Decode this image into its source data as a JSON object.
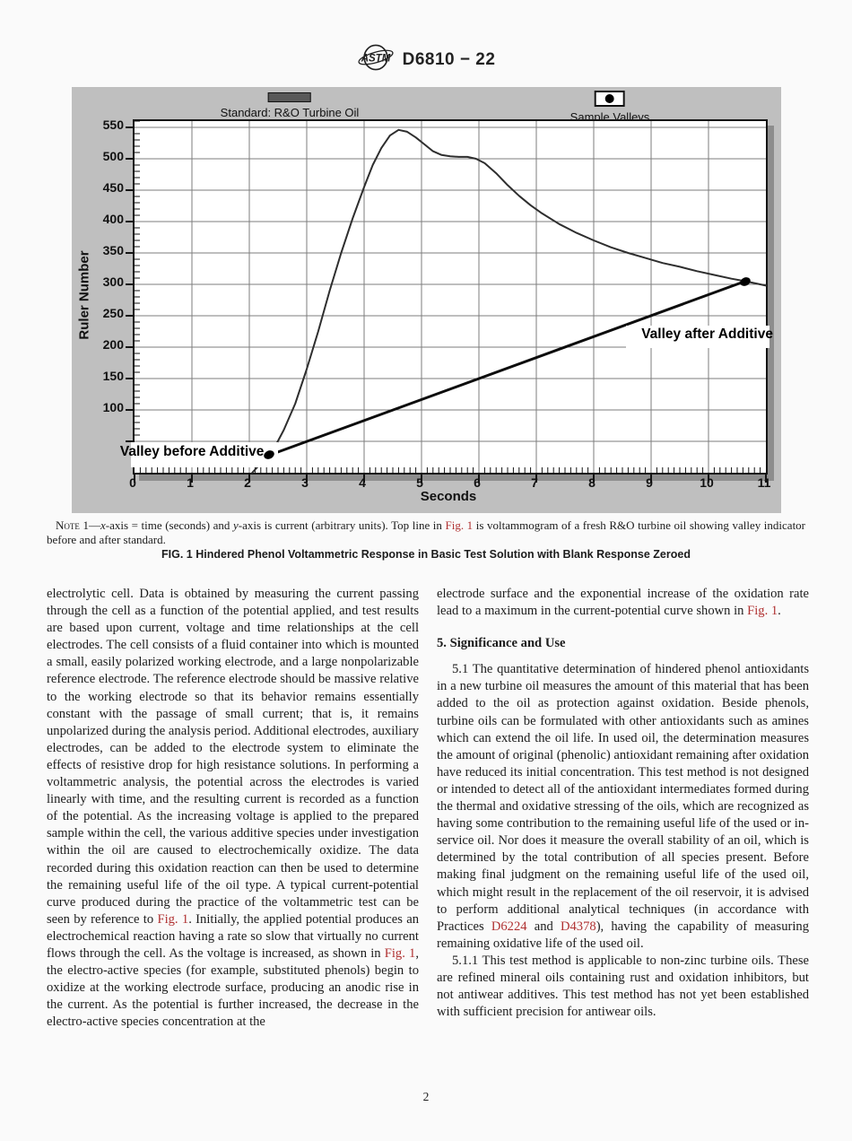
{
  "accent_red": "#b03131",
  "header": {
    "doc_code": "D6810 − 22"
  },
  "figure": {
    "legend": [
      {
        "label": "Standard: R&O Turbine Oil",
        "swatch": "solid-bar-swatch"
      },
      {
        "label": "Sample Valleys",
        "swatch": "dot-marker-swatch"
      }
    ],
    "caption": "FIG. 1 Hindered Phenol Voltammetric Response in Basic Test Solution with Blank Response Zeroed",
    "note_segments": [
      {
        "text": "Note",
        "style": "sc"
      },
      {
        "text": " 1—"
      },
      {
        "text": "x",
        "style": "i"
      },
      {
        "text": "-axis = time (seconds) and "
      },
      {
        "text": "y",
        "style": "i"
      },
      {
        "text": "-axis is current (arbitrary units). Top line in "
      },
      {
        "text": "Fig. 1",
        "style": "red"
      },
      {
        "text": " is voltammogram of a fresh R&O turbine oil showing valley indicator before and after standard."
      }
    ]
  },
  "chart_data": {
    "type": "line",
    "title": "",
    "xlabel": "Seconds",
    "ylabel": "Ruler Number",
    "xlim": [
      0,
      11
    ],
    "ylim": [
      0,
      560
    ],
    "grid": true,
    "legend_position": "top",
    "x_ticks": [
      0,
      1,
      2,
      3,
      4,
      5,
      6,
      7,
      8,
      9,
      10,
      11
    ],
    "y_ticks": [
      100,
      150,
      200,
      250,
      300,
      350,
      400,
      450,
      500,
      550
    ],
    "y_gridlines": [
      50,
      100,
      150,
      200,
      250,
      300,
      350,
      400,
      450,
      500,
      550
    ],
    "x_minor_step": 0.1,
    "y_minor_step": 10,
    "series": [
      {
        "name": "Standard: R&O Turbine Oil",
        "points": [
          [
            2.05,
            0
          ],
          [
            2.15,
            10
          ],
          [
            2.25,
            20
          ],
          [
            2.35,
            28
          ],
          [
            2.45,
            42
          ],
          [
            2.6,
            68
          ],
          [
            2.8,
            110
          ],
          [
            3.0,
            165
          ],
          [
            3.2,
            225
          ],
          [
            3.4,
            290
          ],
          [
            3.6,
            350
          ],
          [
            3.8,
            405
          ],
          [
            4.0,
            455
          ],
          [
            4.15,
            490
          ],
          [
            4.3,
            517
          ],
          [
            4.45,
            537
          ],
          [
            4.6,
            546
          ],
          [
            4.75,
            543
          ],
          [
            4.9,
            534
          ],
          [
            5.05,
            523
          ],
          [
            5.2,
            512
          ],
          [
            5.35,
            506
          ],
          [
            5.5,
            504
          ],
          [
            5.65,
            503
          ],
          [
            5.8,
            503
          ],
          [
            5.95,
            500
          ],
          [
            6.1,
            493
          ],
          [
            6.3,
            477
          ],
          [
            6.5,
            458
          ],
          [
            6.7,
            441
          ],
          [
            6.9,
            426
          ],
          [
            7.1,
            413
          ],
          [
            7.4,
            396
          ],
          [
            7.7,
            382
          ],
          [
            8.0,
            370
          ],
          [
            8.3,
            359
          ],
          [
            8.6,
            350
          ],
          [
            8.9,
            342
          ],
          [
            9.2,
            334
          ],
          [
            9.5,
            328
          ],
          [
            9.8,
            321
          ],
          [
            10.1,
            315
          ],
          [
            10.4,
            309
          ],
          [
            10.64,
            305
          ],
          [
            10.8,
            302
          ],
          [
            11.0,
            298
          ]
        ]
      },
      {
        "name": "Valley indicator line",
        "points": [
          [
            2.35,
            28
          ],
          [
            10.64,
            305
          ]
        ]
      }
    ],
    "markers": {
      "name": "Sample Valleys",
      "points": [
        [
          2.35,
          28
        ],
        [
          10.64,
          305
        ]
      ]
    },
    "annotations": [
      {
        "label": "Valley before Additive",
        "point": [
          2.35,
          28
        ],
        "side": "left"
      },
      {
        "label": "Valley after Additive",
        "point": [
          10.64,
          305
        ],
        "side": "right"
      }
    ],
    "colors": {
      "figure_bg": "#bfbfbf",
      "plot_bg": "#ffffff",
      "grid": "#7d7d7d",
      "axis": "#141414",
      "curve": "#2e2e2e",
      "valley_line": "#0d0d0d",
      "shadow": "#8d8d8d"
    }
  },
  "body": {
    "left_column": {
      "paragraphs": [
        {
          "indent": false,
          "segments": [
            {
              "text": "electrolytic cell. Data is obtained by measuring the current passing through the cell as a function of the potential applied, and test results are based upon current, voltage and time relationships at the cell electrodes. The cell consists of a fluid container into which is mounted a small, easily polarized working electrode, and a large nonpolarizable reference electrode. The reference electrode should be massive relative to the working electrode so that its behavior remains essentially constant with the passage of small current; that is, it remains unpolarized during the analysis period. Additional electrodes, auxiliary electrodes, can be added to the electrode system to eliminate the effects of resistive drop for high resistance solutions. In performing a voltammetric analysis, the potential across the electrodes is varied linearly with time, and the resulting current is recorded as a function of the potential. As the increasing voltage is applied to the prepared sample within the cell, the various additive species under investigation within the oil are caused to electrochemically oxidize. The data recorded during this oxidation reaction can then be used to determine the remaining useful life of the oil type. A typical current-potential curve produced during the practice of the voltammetric test can be seen by reference to "
            },
            {
              "text": "Fig. 1",
              "style": "red"
            },
            {
              "text": ". Initially, the applied potential produces an electrochemical reaction having a rate so slow that virtually no current flows through the cell. As the voltage is increased, as shown in "
            },
            {
              "text": "Fig. 1",
              "style": "red"
            },
            {
              "text": ", the electro-active species (for example, substituted phenols) begin to oxidize at the working electrode surface, producing an anodic rise in the current. As the potential is further increased, the decrease in the electro-active species concentration at the"
            }
          ]
        }
      ]
    },
    "right_column": {
      "paragraph_1": {
        "indent": false,
        "segments": [
          {
            "text": "electrode surface and the exponential increase of the oxidation rate lead to a maximum in the current-potential curve shown in "
          },
          {
            "text": "Fig. 1",
            "style": "red"
          },
          {
            "text": "."
          }
        ]
      },
      "heading": "5. Significance and Use",
      "paragraph_5_1": {
        "indent": true,
        "segments": [
          {
            "text": "5.1 The quantitative determination of hindered phenol antioxidants in a new turbine oil measures the amount of this material that has been added to the oil as protection against oxidation. Beside phenols, turbine oils can be formulated with other antioxidants such as amines which can extend the oil life. In used oil, the determination measures the amount of original (phenolic) antioxidant remaining after oxidation have reduced its initial concentration. This test method is not designed or intended to detect all of the antioxidant intermediates formed during the thermal and oxidative stressing of the oils, which are recognized as having some contribution to the remaining useful life of the used or in-service oil. Nor does it measure the overall stability of an oil, which is determined by the total contribution of all species present. Before making final judgment on the remaining useful life of the used oil, which might result in the replacement of the oil reservoir, it is advised to perform additional analytical techniques (in accordance with Practices "
          },
          {
            "text": "D6224",
            "style": "red"
          },
          {
            "text": " and "
          },
          {
            "text": "D4378",
            "style": "red"
          },
          {
            "text": "), having the capability of measuring remaining oxidative life of the used oil."
          }
        ]
      },
      "paragraph_5_1_1": {
        "indent": true,
        "segments": [
          {
            "text": "5.1.1 This test method is applicable to non-zinc turbine oils. These are refined mineral oils containing rust and oxidation inhibitors, but not antiwear additives. This test method has not yet been established with sufficient precision for antiwear oils."
          }
        ]
      }
    }
  },
  "page_number": "2"
}
